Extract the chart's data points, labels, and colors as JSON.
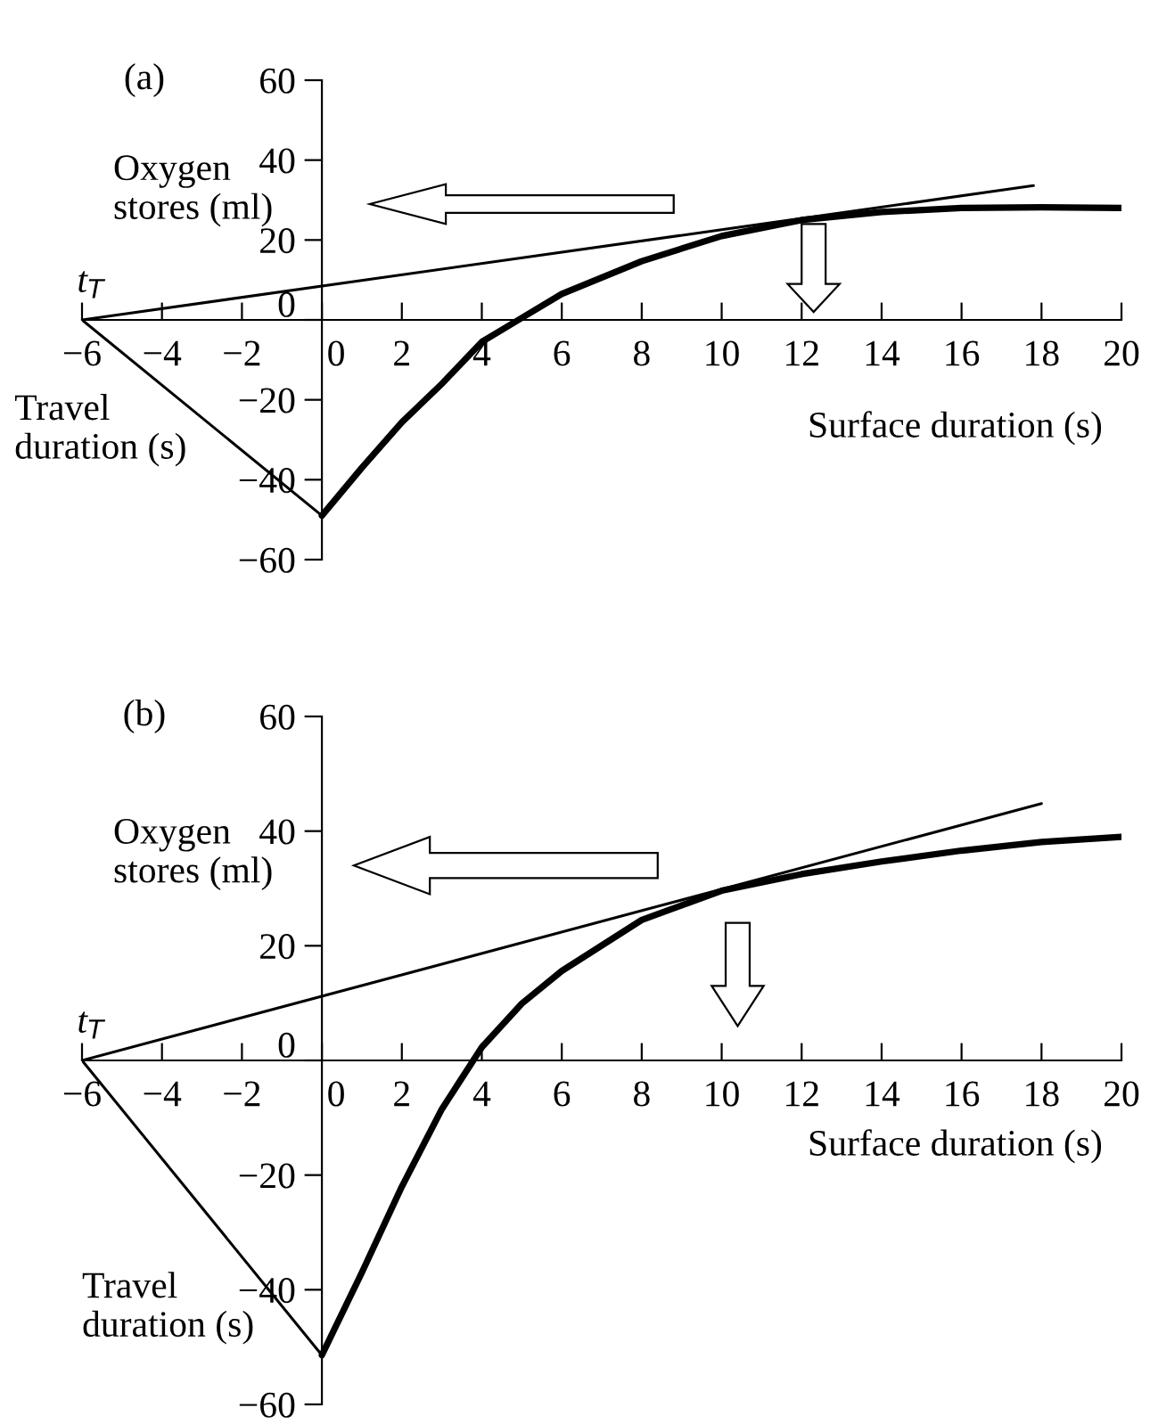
{
  "chart_data": [
    {
      "type": "line",
      "title": "(a)",
      "xlabel": "Surface duration (s)",
      "ylabel": "Oxygen stores (ml)",
      "annotations": [
        {
          "text": "t$_{T}$",
          "x": -6,
          "y": 0
        },
        "Travel duration (s)"
      ],
      "xlim": [
        -6,
        20
      ],
      "ylim": [
        -60,
        60
      ],
      "xticks": [
        -6,
        -4,
        -2,
        0,
        2,
        4,
        6,
        8,
        10,
        12,
        14,
        16,
        18,
        20
      ],
      "yticks": [
        -60,
        -40,
        -20,
        0,
        20,
        40,
        60
      ],
      "grid": false,
      "legend": false,
      "marker": "none",
      "series": [
        {
          "color": "#000000",
          "x": [
            0,
            1,
            2,
            3,
            4,
            5,
            6,
            8,
            10,
            12,
            14,
            16,
            18,
            20
          ],
          "values": [
            -49,
            -37,
            -25.6,
            -16,
            -5.5,
            0.5,
            6.5,
            14.7,
            21,
            25,
            27,
            28,
            28.2,
            28
          ]
        },
        {
          "color": "#000000",
          "x": [
            -6,
            17.8
          ],
          "values": [
            0,
            33.6
          ]
        },
        {
          "color": "#000000",
          "x": [
            -6,
            0
          ],
          "values": [
            0,
            -49
          ]
        }
      ]
    },
    {
      "type": "line",
      "title": "(b)",
      "xlabel": "Surface duration (s)",
      "ylabel": "Oxygen stores (ml)",
      "annotations": [
        {
          "text": "t$_{T}$",
          "x": -6,
          "y": 0
        },
        "Travel duration (s)"
      ],
      "xlim": [
        -6,
        20
      ],
      "ylim": [
        -60,
        60
      ],
      "xticks": [
        -6,
        -4,
        -2,
        0,
        2,
        4,
        6,
        8,
        10,
        12,
        14,
        16,
        18,
        20
      ],
      "yticks": [
        -60,
        -40,
        -20,
        0,
        20,
        40,
        60
      ],
      "grid": false,
      "legend": false,
      "marker": "none",
      "series": [
        {
          "color": "#000000",
          "x": [
            0,
            1,
            2,
            3,
            4,
            5,
            6,
            8,
            10,
            12,
            14,
            16,
            18,
            20
          ],
          "values": [
            -51.4,
            -37,
            -22,
            -8.5,
            2.3,
            9.9,
            15.6,
            24.5,
            29.6,
            32.5,
            34.7,
            36.6,
            38.1,
            39
          ]
        },
        {
          "color": "#000000",
          "x": [
            -6,
            18
          ],
          "values": [
            0,
            44.8
          ]
        },
        {
          "color": "#000000",
          "x": [
            -6,
            0
          ],
          "values": [
            0,
            -51.4
          ]
        }
      ]
    }
  ]
}
